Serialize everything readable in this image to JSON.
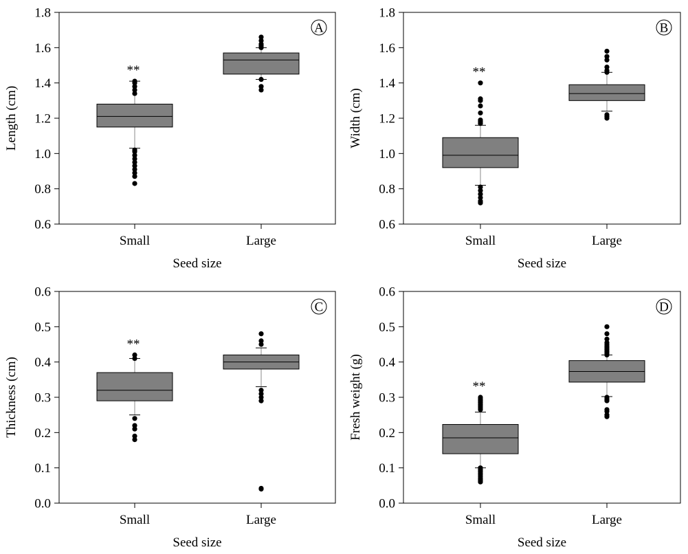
{
  "chart_data": [
    {
      "type": "box",
      "panel_label": "A",
      "xlabel": "Seed size",
      "ylabel": "Length (cm)",
      "ylim": [
        0.6,
        1.8
      ],
      "yticks": [
        "0.6",
        "0.8",
        "1.0",
        "1.2",
        "1.4",
        "1.6",
        "1.8"
      ],
      "grid": false,
      "categories": [
        "Small",
        "Large"
      ],
      "boxes": [
        {
          "category": "Small",
          "q1": 1.15,
          "median": 1.21,
          "q3": 1.28,
          "whisker_low": 1.03,
          "whisker_high": 1.41,
          "outliers": [
            0.83,
            0.87,
            0.89,
            0.91,
            0.93,
            0.95,
            0.97,
            0.99,
            1.01,
            1.02,
            1.34,
            1.36,
            1.38,
            1.4,
            1.41
          ],
          "annotation": "**"
        },
        {
          "category": "Large",
          "q1": 1.45,
          "median": 1.53,
          "q3": 1.57,
          "whisker_low": 1.42,
          "whisker_high": 1.6,
          "outliers": [
            1.36,
            1.38,
            1.42,
            1.6,
            1.61,
            1.62,
            1.64,
            1.66
          ],
          "annotation": ""
        }
      ]
    },
    {
      "type": "box",
      "panel_label": "B",
      "xlabel": "Seed size",
      "ylabel": "Width (cm)",
      "ylim": [
        0.6,
        1.8
      ],
      "yticks": [
        "0.6",
        "0.8",
        "1.0",
        "1.2",
        "1.4",
        "1.6",
        "1.8"
      ],
      "grid": false,
      "categories": [
        "Small",
        "Large"
      ],
      "boxes": [
        {
          "category": "Small",
          "q1": 0.92,
          "median": 0.99,
          "q3": 1.09,
          "whisker_low": 0.82,
          "whisker_high": 1.16,
          "outliers": [
            0.72,
            0.73,
            0.75,
            0.77,
            0.79,
            0.81,
            1.17,
            1.18,
            1.19,
            1.23,
            1.27,
            1.3,
            1.31,
            1.4
          ],
          "annotation": "**"
        },
        {
          "category": "Large",
          "q1": 1.3,
          "median": 1.34,
          "q3": 1.39,
          "whisker_low": 1.24,
          "whisker_high": 1.46,
          "outliers": [
            1.2,
            1.21,
            1.22,
            1.46,
            1.47,
            1.49,
            1.53,
            1.55,
            1.58
          ],
          "annotation": ""
        }
      ]
    },
    {
      "type": "box",
      "panel_label": "C",
      "xlabel": "Seed size",
      "ylabel": "Thickness (cm)",
      "ylim": [
        0.0,
        0.6
      ],
      "yticks": [
        "0.0",
        "0.1",
        "0.2",
        "0.3",
        "0.4",
        "0.5",
        "0.6"
      ],
      "grid": false,
      "categories": [
        "Small",
        "Large"
      ],
      "boxes": [
        {
          "category": "Small",
          "q1": 0.29,
          "median": 0.32,
          "q3": 0.37,
          "whisker_low": 0.25,
          "whisker_high": 0.41,
          "outliers": [
            0.18,
            0.19,
            0.21,
            0.22,
            0.24,
            0.41,
            0.42
          ],
          "annotation": "**"
        },
        {
          "category": "Large",
          "q1": 0.38,
          "median": 0.4,
          "q3": 0.42,
          "whisker_low": 0.33,
          "whisker_high": 0.44,
          "outliers": [
            0.04,
            0.042,
            0.29,
            0.3,
            0.31,
            0.32,
            0.45,
            0.46,
            0.48
          ],
          "annotation": ""
        }
      ]
    },
    {
      "type": "box",
      "panel_label": "D",
      "xlabel": "Seed size",
      "ylabel": "Fresh weight (g)",
      "ylim": [
        0.0,
        0.6
      ],
      "yticks": [
        "0.0",
        "0.1",
        "0.2",
        "0.3",
        "0.4",
        "0.5",
        "0.6"
      ],
      "grid": false,
      "categories": [
        "Small",
        "Large"
      ],
      "boxes": [
        {
          "category": "Small",
          "q1": 0.14,
          "median": 0.185,
          "q3": 0.223,
          "whisker_low": 0.1,
          "whisker_high": 0.258,
          "outliers": [
            0.06,
            0.065,
            0.07,
            0.075,
            0.08,
            0.085,
            0.09,
            0.095,
            0.1,
            0.265,
            0.27,
            0.275,
            0.28,
            0.285,
            0.29,
            0.295,
            0.3
          ],
          "annotation": "**"
        },
        {
          "category": "Large",
          "q1": 0.343,
          "median": 0.373,
          "q3": 0.404,
          "whisker_low": 0.302,
          "whisker_high": 0.42,
          "outliers": [
            0.245,
            0.25,
            0.26,
            0.265,
            0.29,
            0.295,
            0.3,
            0.42,
            0.425,
            0.43,
            0.435,
            0.44,
            0.445,
            0.45,
            0.455,
            0.465,
            0.48,
            0.5
          ],
          "annotation": ""
        }
      ]
    }
  ]
}
